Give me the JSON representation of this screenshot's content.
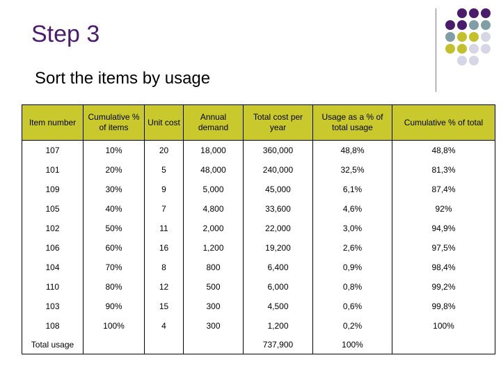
{
  "slide": {
    "title": "Step 3",
    "subtitle": "Sort the items by usage"
  },
  "decoration": {
    "colors": {
      "purple": "#4b1c6e",
      "teal": "#7f9ea5",
      "olive": "#c4c02c",
      "lavender": "#d6d6e6"
    }
  },
  "table": {
    "header_color": "#c9c92d",
    "columns": [
      "Item number",
      "Cumulative % of items",
      "Unit cost",
      "Annual demand",
      "Total cost per year",
      "Usage as a % of total usage",
      "Cumulative % of total"
    ],
    "rows": [
      [
        "107",
        "10%",
        "20",
        "18,000",
        "360,000",
        "48,8%",
        "48,8%"
      ],
      [
        "101",
        "20%",
        "5",
        "48,000",
        "240,000",
        "32,5%",
        "81,3%"
      ],
      [
        "109",
        "30%",
        "9",
        "5,000",
        "45,000",
        "6,1%",
        "87,4%"
      ],
      [
        "105",
        "40%",
        "7",
        "4,800",
        "33,600",
        "4,6%",
        "92%"
      ],
      [
        "102",
        "50%",
        "11",
        "2,000",
        "22,000",
        "3,0%",
        "94,9%"
      ],
      [
        "106",
        "60%",
        "16",
        "1,200",
        "19,200",
        "2,6%",
        "97,5%"
      ],
      [
        "104",
        "70%",
        "8",
        "800",
        "6,400",
        "0,9%",
        "98,4%"
      ],
      [
        "110",
        "80%",
        "12",
        "500",
        "6,000",
        "0,8%",
        "99,2%"
      ],
      [
        "103",
        "90%",
        "15",
        "300",
        "4,500",
        "0,6%",
        "99,8%"
      ],
      [
        "108",
        "100%",
        "4",
        "300",
        "1,200",
        "0,2%",
        "100%"
      ]
    ],
    "total_row": [
      "Total usage",
      "",
      "",
      "",
      "737,900",
      "100%",
      ""
    ]
  }
}
